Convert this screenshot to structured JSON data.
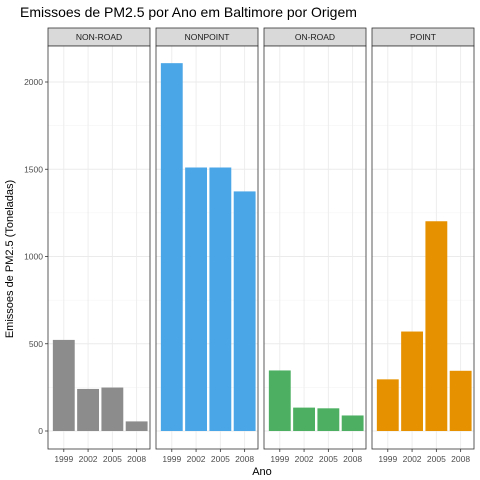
{
  "chart_data": {
    "type": "bar",
    "title": "Emissoes de PM2.5 por Ano em Baltimore por Origem",
    "xlabel": "Ano",
    "ylabel": "Emissoes de PM2.5 (Toneladas)",
    "ylim": [
      0,
      2200
    ],
    "yticks": [
      0,
      500,
      1000,
      1500,
      2000
    ],
    "grid": true,
    "legend": "none",
    "categories": [
      "1999",
      "2002",
      "2005",
      "2008"
    ],
    "series": [
      {
        "name": "NON-ROAD",
        "color": "#8c8c8c",
        "values": [
          522,
          241,
          249,
          55
        ]
      },
      {
        "name": "NONPOINT",
        "color": "#4aa6e6",
        "values": [
          2108,
          1510,
          1510,
          1373
        ]
      },
      {
        "name": "ON-ROAD",
        "color": "#4caf62",
        "values": [
          347,
          134,
          130,
          89
        ]
      },
      {
        "name": "POINT",
        "color": "#e69100",
        "values": [
          296,
          570,
          1202,
          345
        ]
      }
    ]
  }
}
